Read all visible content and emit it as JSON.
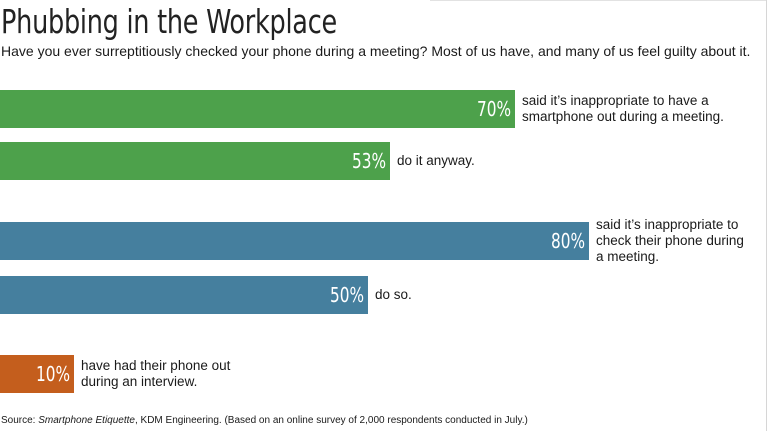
{
  "title": "Phubbing in the Workplace",
  "subtitle": "Have you ever surreptitiously checked your phone during a meeting? Most of us have, and many of us feel guilty about it.",
  "source": {
    "prefix": "Source: ",
    "work": "Smartphone Etiquette",
    "rest": ", KDM Engineering. (Based on an online survey of 2,000 respondents conducted in July.)"
  },
  "chart_data": {
    "type": "bar",
    "orientation": "horizontal",
    "unit": "%",
    "xlim": [
      0,
      100
    ],
    "grid": false,
    "bars": [
      {
        "value": 70,
        "label": "70%",
        "text": "said it’s inappropriate to have a\nsmartphone out during a meeting.",
        "color": "#4da14b"
      },
      {
        "value": 53,
        "label": "53%",
        "text": "do it anyway.",
        "color": "#4da14b"
      },
      {
        "value": 80,
        "label": "80%",
        "text": "said it’s inappropriate to\ncheck their phone during\na meeting.",
        "color": "#457f9e"
      },
      {
        "value": 50,
        "label": "50%",
        "text": "do so.",
        "color": "#457f9e"
      },
      {
        "value": 10,
        "label": "10%",
        "text": "have had their phone out\nduring an interview.",
        "color": "#c45e1d"
      }
    ]
  }
}
